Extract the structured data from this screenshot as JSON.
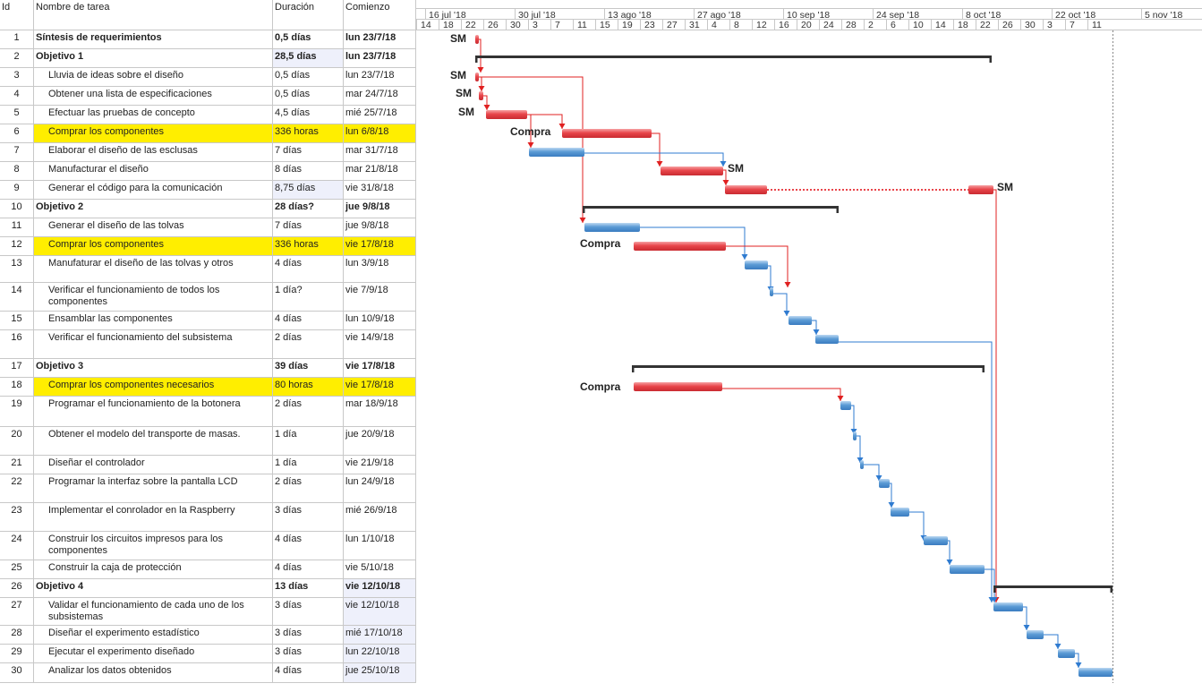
{
  "header": {
    "id": "Id",
    "name": "Nombre de tarea",
    "duration": "Duración",
    "start": "Comienzo"
  },
  "timescale": {
    "weeks": [
      "16 jul '18",
      "30 jul '18",
      "13 ago '18",
      "27 ago '18",
      "10 sep '18",
      "24 sep '18",
      "8 oct '18",
      "22 oct '18",
      "5 nov '18"
    ],
    "days": [
      "14",
      "18",
      "22",
      "26",
      "30",
      "3",
      "7",
      "11",
      "15",
      "19",
      "23",
      "27",
      "31",
      "4",
      "8",
      "12",
      "16",
      "20",
      "24",
      "28",
      "2",
      "6",
      "10",
      "14",
      "18",
      "22",
      "26",
      "30",
      "3",
      "7",
      "11"
    ]
  },
  "tasks": [
    {
      "id": "1",
      "name": "Síntesis de requerimientos",
      "duration": "0,5 días",
      "start": "lun 23/7/18",
      "summary": true,
      "highlight": false,
      "start_blue": false,
      "dur_blue": false
    },
    {
      "id": "2",
      "name": "Objetivo 1",
      "duration": "28,5 días",
      "start": "lun 23/7/18",
      "summary": true,
      "highlight": false,
      "start_blue": false,
      "dur_blue": true
    },
    {
      "id": "3",
      "name": "Lluvia de ideas sobre el diseño",
      "duration": "0,5 días",
      "start": "lun 23/7/18",
      "summary": false,
      "highlight": false,
      "start_blue": false,
      "dur_blue": false
    },
    {
      "id": "4",
      "name": "Obtener una lista de especificaciones",
      "duration": "0,5 días",
      "start": "mar 24/7/18",
      "summary": false,
      "highlight": false,
      "start_blue": false,
      "dur_blue": false
    },
    {
      "id": "5",
      "name": "Efectuar las pruebas de concepto",
      "duration": "4,5 días",
      "start": "mié 25/7/18",
      "summary": false,
      "highlight": false,
      "start_blue": false,
      "dur_blue": false
    },
    {
      "id": "6",
      "name": "Comprar los componentes",
      "duration": "336 horas",
      "start": "lun 6/8/18",
      "summary": false,
      "highlight": true,
      "start_blue": false,
      "dur_blue": false
    },
    {
      "id": "7",
      "name": "Elaborar el diseño de las esclusas",
      "duration": "7 días",
      "start": "mar 31/7/18",
      "summary": false,
      "highlight": false,
      "start_blue": false,
      "dur_blue": false
    },
    {
      "id": "8",
      "name": "Manufacturar el diseño",
      "duration": "8 días",
      "start": "mar 21/8/18",
      "summary": false,
      "highlight": false,
      "start_blue": false,
      "dur_blue": false
    },
    {
      "id": "9",
      "name": "Generar el código para la comunicación",
      "duration": "8,75 días",
      "start": "vie 31/8/18",
      "summary": false,
      "highlight": false,
      "start_blue": false,
      "dur_blue": true
    },
    {
      "id": "10",
      "name": "Objetivo 2",
      "duration": "28 días?",
      "start": "jue 9/8/18",
      "summary": true,
      "highlight": false,
      "start_blue": false,
      "dur_blue": false
    },
    {
      "id": "11",
      "name": "Generar el diseño de las tolvas",
      "duration": "7 días",
      "start": "jue 9/8/18",
      "summary": false,
      "highlight": false,
      "start_blue": false,
      "dur_blue": false
    },
    {
      "id": "12",
      "name": "Comprar los componentes",
      "duration": "336 horas",
      "start": "vie 17/8/18",
      "summary": false,
      "highlight": true,
      "start_blue": false,
      "dur_blue": false
    },
    {
      "id": "13",
      "name": "Manufaturar el diseño de las tolvas y otros",
      "duration": "4 días",
      "start": "lun 3/9/18",
      "summary": false,
      "highlight": false,
      "start_blue": false,
      "dur_blue": false
    },
    {
      "id": "14",
      "name": "Verificar el funcionamiento de todos los componentes",
      "duration": "1 día?",
      "start": "vie 7/9/18",
      "summary": false,
      "highlight": false,
      "start_blue": false,
      "dur_blue": false
    },
    {
      "id": "15",
      "name": "Ensamblar las componentes",
      "duration": "4 días",
      "start": "lun 10/9/18",
      "summary": false,
      "highlight": false,
      "start_blue": false,
      "dur_blue": false
    },
    {
      "id": "16",
      "name": "Verificar el funcionamiento del subsistema",
      "duration": "2 días",
      "start": "vie 14/9/18",
      "summary": false,
      "highlight": false,
      "start_blue": false,
      "dur_blue": false
    },
    {
      "id": "17",
      "name": "Objetivo 3",
      "duration": "39 días",
      "start": "vie 17/8/18",
      "summary": true,
      "highlight": false,
      "start_blue": false,
      "dur_blue": false
    },
    {
      "id": "18",
      "name": "Comprar los componentes necesarios",
      "duration": "80 horas",
      "start": "vie 17/8/18",
      "summary": false,
      "highlight": true,
      "start_blue": false,
      "dur_blue": false
    },
    {
      "id": "19",
      "name": "Programar el funcionamiento de la botonera",
      "duration": "2 días",
      "start": "mar 18/9/18",
      "summary": false,
      "highlight": false,
      "start_blue": false,
      "dur_blue": false
    },
    {
      "id": "20",
      "name": "Obtener el modelo del transporte de masas.",
      "duration": "1 día",
      "start": "jue 20/9/18",
      "summary": false,
      "highlight": false,
      "start_blue": false,
      "dur_blue": false
    },
    {
      "id": "21",
      "name": "Diseñar el controlador",
      "duration": "1 día",
      "start": "vie 21/9/18",
      "summary": false,
      "highlight": false,
      "start_blue": false,
      "dur_blue": false
    },
    {
      "id": "22",
      "name": "Programar la interfaz sobre la pantalla LCD",
      "duration": "2 días",
      "start": "lun 24/9/18",
      "summary": false,
      "highlight": false,
      "start_blue": false,
      "dur_blue": false
    },
    {
      "id": "23",
      "name": "Implementar el conrolador en la Raspberry",
      "duration": "3 días",
      "start": "mié 26/9/18",
      "summary": false,
      "highlight": false,
      "start_blue": false,
      "dur_blue": false
    },
    {
      "id": "24",
      "name": "Construir los circuitos impresos para los componentes",
      "duration": "4 días",
      "start": "lun 1/10/18",
      "summary": false,
      "highlight": false,
      "start_blue": false,
      "dur_blue": false
    },
    {
      "id": "25",
      "name": "Construir la caja de protección",
      "duration": "4 días",
      "start": "vie 5/10/18",
      "summary": false,
      "highlight": false,
      "start_blue": false,
      "dur_blue": false
    },
    {
      "id": "26",
      "name": "Objetivo 4",
      "duration": "13 días",
      "start": "vie 12/10/18",
      "summary": true,
      "highlight": false,
      "start_blue": true,
      "dur_blue": false
    },
    {
      "id": "27",
      "name": "Validar el funcionamiento de cada uno de los subsistemas",
      "duration": "3 días",
      "start": "vie 12/10/18",
      "summary": false,
      "highlight": false,
      "start_blue": true,
      "dur_blue": false
    },
    {
      "id": "28",
      "name": "Diseñar el experimento estadístico",
      "duration": "3 días",
      "start": "mié 17/10/18",
      "summary": false,
      "highlight": false,
      "start_blue": true,
      "dur_blue": false
    },
    {
      "id": "29",
      "name": "Ejecutar el experimento diseñado",
      "duration": "3 días",
      "start": "lun 22/10/18",
      "summary": false,
      "highlight": false,
      "start_blue": true,
      "dur_blue": false
    },
    {
      "id": "30",
      "name": "Analizar los datos obtenidos",
      "duration": "4 días",
      "start": "jue 25/10/18",
      "summary": false,
      "highlight": false,
      "start_blue": true,
      "dur_blue": false
    }
  ],
  "bar_labels": {
    "t1": "SM",
    "t3": "SM",
    "t4": "SM",
    "t5": "SM",
    "t6": "Compra",
    "t8": "SM",
    "t9": "SM",
    "t12": "Compra",
    "t18": "Compra"
  },
  "colors": {
    "critical": "#e8454a",
    "normal": "#5b9bd5",
    "summary": "#333333",
    "highlight": "#ffee00",
    "link_red": "#e02020",
    "link_blue": "#2f7bd0"
  }
}
